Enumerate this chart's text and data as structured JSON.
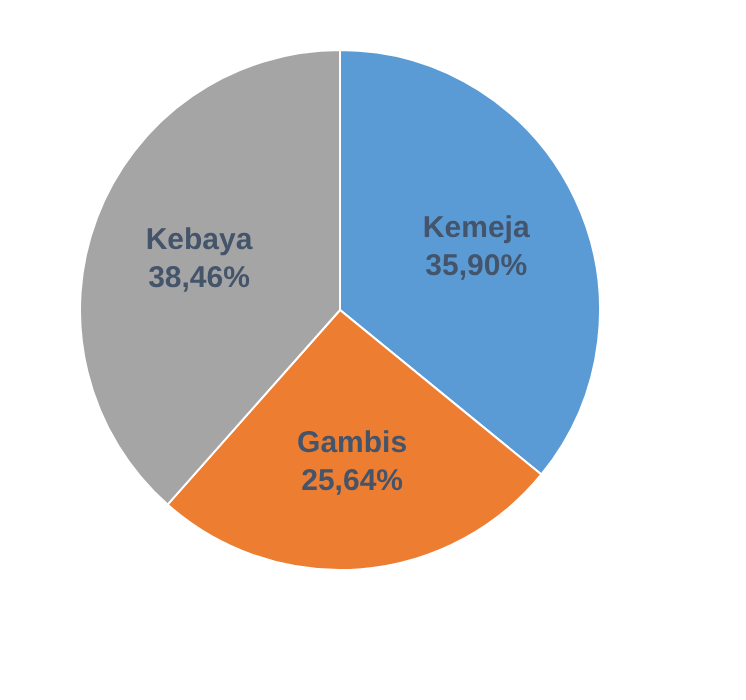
{
  "chart_data": {
    "type": "pie",
    "categories": [
      "Kemeja",
      "Gambis",
      "Kebaya"
    ],
    "values": [
      35.9,
      25.64,
      38.46
    ],
    "colors": [
      "#5b9bd5",
      "#ed7d31",
      "#a5a5a5"
    ],
    "value_labels": [
      "35,90%",
      "25,64%",
      "38,46%"
    ],
    "legend": false
  }
}
